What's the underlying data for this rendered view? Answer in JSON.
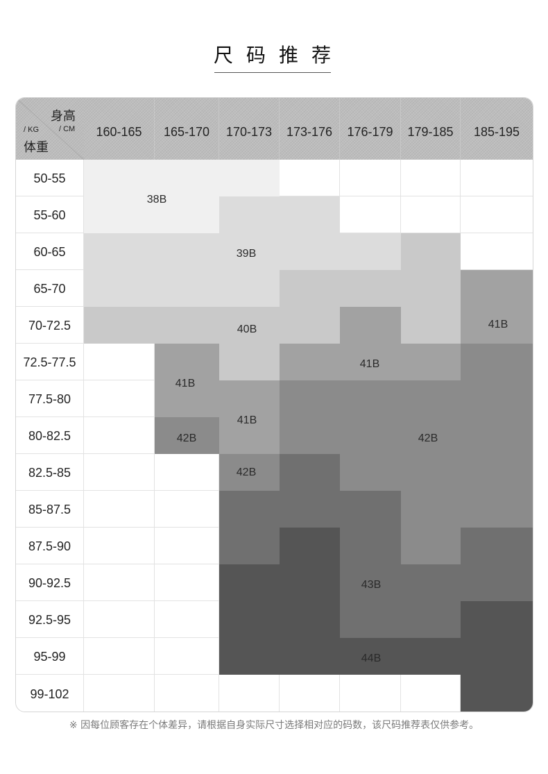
{
  "chart_data": {
    "type": "table",
    "title": "尺码推荐",
    "column_axis": {
      "label": "身高",
      "unit": "/ CM",
      "values": [
        "160-165",
        "165-170",
        "170-173",
        "173-176",
        "176-179",
        "179-185",
        "185-195"
      ]
    },
    "row_axis": {
      "label": "体重",
      "unit": "/ KG",
      "values": [
        "50-55",
        "55-60",
        "60-65",
        "65-70",
        "70-72.5",
        "72.5-77.5",
        "77.5-80",
        "80-82.5",
        "82.5-85",
        "85-87.5",
        "87.5-90",
        "90-92.5",
        "92.5-95",
        "95-99",
        "99-102"
      ]
    },
    "sizes": [
      [
        "38B",
        "38B",
        "38B",
        "",
        "",
        "",
        ""
      ],
      [
        "38B",
        "38B",
        "39B",
        "39B",
        "",
        "",
        ""
      ],
      [
        "39B",
        "39B",
        "39B",
        "39B",
        "39B",
        "40B",
        ""
      ],
      [
        "39B",
        "39B",
        "39B",
        "40B",
        "40B",
        "40B",
        "41B"
      ],
      [
        "40B",
        "40B",
        "40B",
        "40B",
        "41B",
        "40B",
        "41B"
      ],
      [
        "",
        "41B",
        "40B",
        "41B",
        "41B",
        "41B",
        "42B"
      ],
      [
        "",
        "41B",
        "41B",
        "42B",
        "42B",
        "42B",
        "42B"
      ],
      [
        "",
        "42B",
        "41B",
        "42B",
        "42B",
        "42B",
        "42B"
      ],
      [
        "",
        "",
        "42B",
        "43B",
        "42B",
        "42B",
        "42B"
      ],
      [
        "",
        "",
        "43B",
        "43B",
        "43B",
        "42B",
        "42B"
      ],
      [
        "",
        "",
        "43B",
        "44B",
        "43B",
        "42B",
        "43B"
      ],
      [
        "",
        "",
        "44B",
        "44B",
        "43B",
        "43B",
        "43B"
      ],
      [
        "",
        "",
        "44B",
        "44B",
        "43B",
        "43B",
        "44B"
      ],
      [
        "",
        "",
        "44B",
        "44B",
        "44B",
        "44B",
        "44B"
      ],
      [
        "",
        "",
        "",
        "",
        "",
        "",
        "44B"
      ]
    ],
    "size_colors": {
      "38B": "#f0f0f0",
      "39B": "#dcdcdc",
      "40B": "#c9c9c9",
      "41B": "#a2a2a2",
      "42B": "#8b8b8b",
      "43B": "#707070",
      "44B": "#555555"
    },
    "empty_color": "#ffffff",
    "header_color": "#bdbdbd",
    "region_labels": [
      "38B",
      "39B",
      "40B",
      "41B",
      "41B",
      "41B",
      "41B",
      "42B",
      "42B",
      "42B",
      "43B",
      "44B"
    ]
  },
  "note": "※ 因每位顾客存在个体差异，请根据自身实际尺寸选择相对应的码数，该尺码推荐表仅供参考。"
}
